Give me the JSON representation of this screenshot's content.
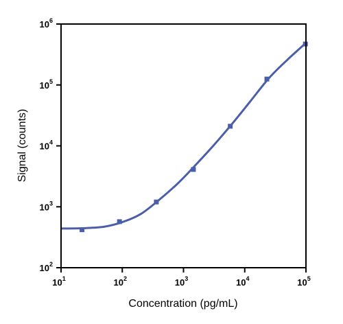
{
  "chart_data": {
    "type": "scatter",
    "title": "",
    "xlabel": "Concentration (pg/mL)",
    "ylabel": "Signal (counts)",
    "xscale": "log",
    "yscale": "log",
    "xlim": [
      10,
      100000
    ],
    "ylim": [
      100,
      1000000
    ],
    "x_ticks": [
      {
        "value": 10,
        "base": "10",
        "exp": "1"
      },
      {
        "value": 100,
        "base": "10",
        "exp": "2"
      },
      {
        "value": 1000,
        "base": "10",
        "exp": "3"
      },
      {
        "value": 10000,
        "base": "10",
        "exp": "4"
      },
      {
        "value": 100000,
        "base": "10",
        "exp": "5"
      }
    ],
    "y_ticks": [
      {
        "value": 100,
        "base": "10",
        "exp": "2"
      },
      {
        "value": 1000,
        "base": "10",
        "exp": "3"
      },
      {
        "value": 10000,
        "base": "10",
        "exp": "4"
      },
      {
        "value": 100000,
        "base": "10",
        "exp": "5"
      },
      {
        "value": 1000000,
        "base": "10",
        "exp": "6"
      }
    ],
    "grid": false,
    "color": "#4a5fa8",
    "series": [
      {
        "points": [
          {
            "x": 22,
            "y": 420
          },
          {
            "x": 90,
            "y": 570
          },
          {
            "x": 360,
            "y": 1200
          },
          {
            "x": 1450,
            "y": 4100
          },
          {
            "x": 5800,
            "y": 21000
          },
          {
            "x": 23000,
            "y": 125000
          },
          {
            "x": 98000,
            "y": 470000
          }
        ],
        "fit": [
          {
            "x": 10,
            "y": 440
          },
          {
            "x": 22,
            "y": 445
          },
          {
            "x": 50,
            "y": 470
          },
          {
            "x": 100,
            "y": 560
          },
          {
            "x": 200,
            "y": 760
          },
          {
            "x": 400,
            "y": 1300
          },
          {
            "x": 800,
            "y": 2400
          },
          {
            "x": 1500,
            "y": 4600
          },
          {
            "x": 3000,
            "y": 9800
          },
          {
            "x": 6000,
            "y": 22000
          },
          {
            "x": 12000,
            "y": 52000
          },
          {
            "x": 25000,
            "y": 130000
          },
          {
            "x": 50000,
            "y": 260000
          },
          {
            "x": 100000,
            "y": 490000
          }
        ]
      }
    ]
  }
}
